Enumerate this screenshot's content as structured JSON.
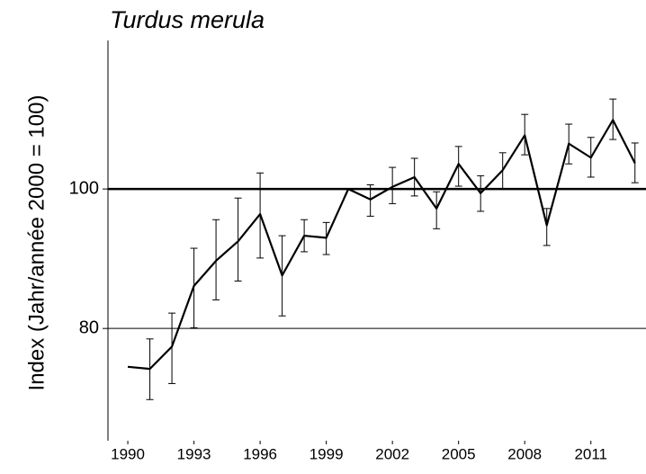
{
  "chart_data": {
    "type": "line",
    "title": "Turdus merula",
    "y_label": "Index (Jahr/année 2000 = 100)",
    "x": [
      1990,
      1991,
      1992,
      1993,
      1994,
      1995,
      1996,
      1997,
      1998,
      1999,
      2000,
      2001,
      2002,
      2003,
      2004,
      2005,
      2006,
      2007,
      2008,
      2009,
      2010,
      2011,
      2012,
      2013
    ],
    "series": [
      {
        "color": "#000000",
        "values": [
          74.5,
          74.2,
          77.4,
          86.1,
          89.7,
          92.5,
          96.4,
          87.6,
          93.3,
          93.0,
          100,
          98.5,
          100.3,
          101.7,
          97.2,
          103.6,
          99.4,
          102.7,
          107.7,
          94.8,
          106.5,
          104.5,
          109.9,
          103.7
        ],
        "ci_low": [
          null,
          69.8,
          72.1,
          80.1,
          84.1,
          86.8,
          90.1,
          81.8,
          91.0,
          90.6,
          null,
          96.1,
          97.9,
          99.0,
          94.3,
          100.4,
          96.8,
          100.0,
          104.9,
          91.9,
          103.6,
          101.7,
          107.1,
          100.9
        ],
        "ci_high": [
          null,
          78.5,
          82.2,
          91.5,
          95.6,
          98.7,
          102.3,
          93.3,
          95.6,
          95.2,
          null,
          100.6,
          103.1,
          104.4,
          99.6,
          106.1,
          101.9,
          105.2,
          110.7,
          97.2,
          109.3,
          107.4,
          112.9,
          106.6
        ]
      }
    ],
    "xlim": [
      1989.1,
      2013.5
    ],
    "xticks": [
      1990,
      1993,
      1996,
      1999,
      2002,
      2005,
      2008,
      2011
    ],
    "ylim": [
      63.9,
      121.3
    ],
    "yticks": [
      80,
      100
    ],
    "grid": true,
    "reference_line": 100
  }
}
